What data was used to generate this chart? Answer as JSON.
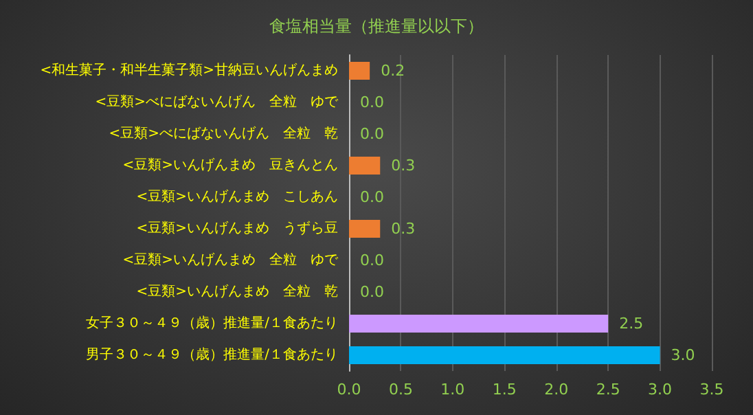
{
  "chart_data": {
    "type": "bar",
    "orientation": "horizontal",
    "title": "食塩相当量（推進量以以下）",
    "categories": [
      "<和生菓子・和半生菓子類>甘納豆いんげんまめ",
      "<豆類>べにばないんげん　全粒　ゆで",
      "<豆類>べにばないんげん　全粒　乾",
      "<豆類>いんげんまめ　豆きんとん",
      "<豆類>いんげんまめ　こしあん",
      "<豆類>いんげんまめ　うずら豆",
      "<豆類>いんげんまめ　全粒　ゆで",
      "<豆類>いんげんまめ　全粒　乾",
      "女子３０～４９（歳）推進量/１食あたり",
      "男子３０～４９（歳）推進量/１食あたり"
    ],
    "values": [
      0.2,
      0,
      0,
      0.3,
      0,
      0.3,
      0,
      0,
      2.5,
      3.0
    ],
    "colors": [
      "#ed7d31",
      "#ed7d31",
      "#ed7d31",
      "#ed7d31",
      "#ed7d31",
      "#ed7d31",
      "#ed7d31",
      "#ed7d31",
      "#cc99ff",
      "#00b0f0"
    ],
    "value_labels": [
      "0.2",
      "0.0",
      "0.0",
      "0.3",
      "0.0",
      "0.3",
      "0.0",
      "0.0",
      "2.5",
      "3.0"
    ],
    "xlim": [
      0,
      3.5
    ],
    "xticks": [
      {
        "value": 0,
        "label": "0.0"
      },
      {
        "value": 0.5,
        "label": "0.5"
      },
      {
        "value": 1,
        "label": "1.0"
      },
      {
        "value": 1.5,
        "label": "1.5"
      },
      {
        "value": 2,
        "label": "2.0"
      },
      {
        "value": 2.5,
        "label": "2.5"
      },
      {
        "value": 3,
        "label": "3.0"
      },
      {
        "value": 3.5,
        "label": "3.5"
      }
    ],
    "grid": "x"
  }
}
